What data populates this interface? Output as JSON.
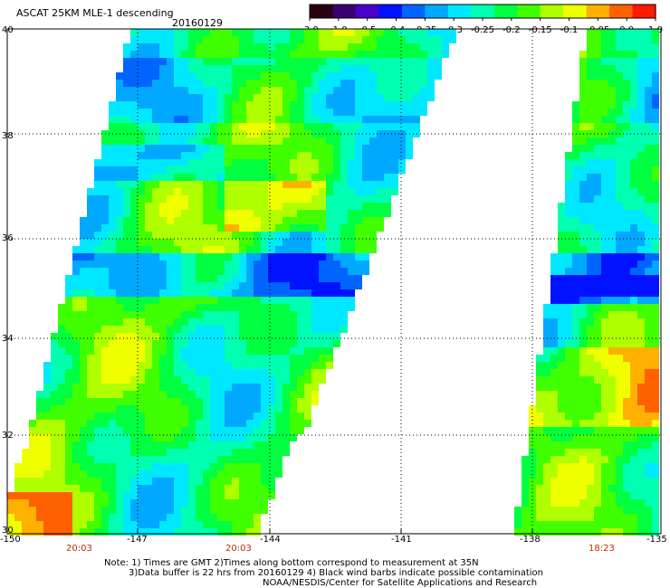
{
  "header": {
    "product": "ASCAT 25KM MLE-1 descending",
    "date": "20160129"
  },
  "colorbar": {
    "labels": [
      "-3.0",
      "-1.0",
      "-0.5",
      "-0.4",
      "-0.35",
      "-0.3",
      "-0.25",
      "-0.2",
      "-0.15",
      "-0.1",
      "-0.05",
      "0.0",
      "1.0"
    ],
    "colors": [
      "#2a0010",
      "#3b0070",
      "#4a00c8",
      "#0012ff",
      "#0064ff",
      "#00a8ff",
      "#00e8ff",
      "#00ffb0",
      "#00ff40",
      "#40ff00",
      "#b0ff00",
      "#f0ff00",
      "#ffb000",
      "#ff6000",
      "#ff1a00"
    ]
  },
  "map": {
    "lat_labels": [
      "40",
      "38",
      "36",
      "34",
      "32",
      "30"
    ],
    "lon_labels": [
      "-150",
      "-147",
      "-144",
      "-141",
      "-138",
      "-135"
    ],
    "pass_times": [
      "20:03",
      "20:03",
      "18:23"
    ],
    "lon_range": [
      -150,
      -135
    ],
    "lat_range": [
      30,
      40
    ]
  },
  "notes": {
    "line1": "Note: 1) Times are GMT 2)Times along bottom correspond to measurement at 35N",
    "line2": "3)Data buffer is 22 hrs from 20160129 4) Black wind barbs indicate possible contamination",
    "line3": "NOAA/NESDIS/Center for Satellite Applications and Research"
  },
  "colors": {
    "time_label": "#c42a00",
    "grid": "#000000"
  }
}
